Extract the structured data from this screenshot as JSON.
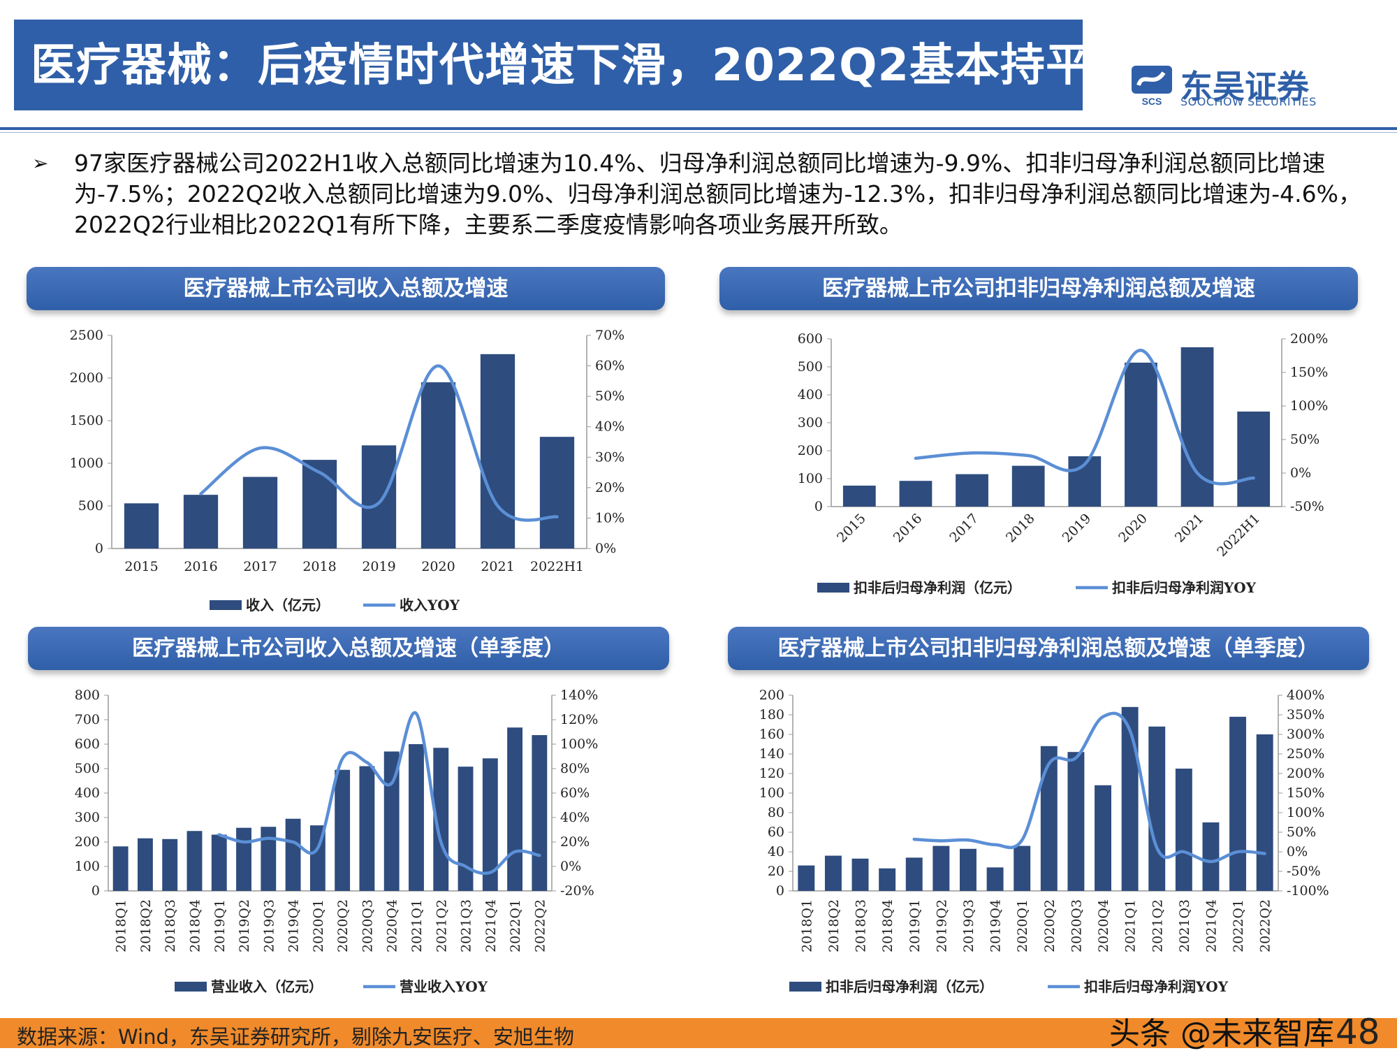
{
  "title": "医疗器械：后疫情时代增速下滑，2022Q2基本持平",
  "logo": {
    "cn": "东吴证券",
    "en": "SOOCHOW SECURITIES",
    "mark": "SCS"
  },
  "summary": {
    "bullet": "➢",
    "text": "97家医疗器械公司2022H1收入总额同比增速为10.4%、归母净利润总额同比增速为-9.9%、扣非归母净利润总额同比增速为-7.5%；2022Q2收入总额同比增速为9.0%、归母净利润总额同比增速为-12.3%，扣非归母净利润总额同比增速为-4.6%，2022Q2行业相比2022Q1有所下降，主要系二季度疫情影响各项业务展开所致。"
  },
  "colors": {
    "bar": "#2e4c7e",
    "line": "#5b8fd6",
    "header": "#2f5fa8",
    "footer": "#f08a2a"
  },
  "chart_data": [
    {
      "header": "医疗器械上市公司收入总额及增速",
      "type": "bar",
      "categories": [
        "2015",
        "2016",
        "2017",
        "2018",
        "2019",
        "2020",
        "2021",
        "2022H1"
      ],
      "series": [
        {
          "name": "收入（亿元）",
          "type": "bar",
          "axis": "left",
          "values": [
            530,
            630,
            840,
            1040,
            1210,
            1950,
            2280,
            1310
          ]
        },
        {
          "name": "收入YOY",
          "type": "line",
          "axis": "right",
          "values": [
            null,
            18,
            33,
            25,
            15,
            60,
            14,
            10.4
          ]
        }
      ],
      "left_axis": {
        "min": 0,
        "max": 2500,
        "ticks": [
          "0",
          "500",
          "1000",
          "1500",
          "2000",
          "2500"
        ]
      },
      "right_axis": {
        "min": 0,
        "max": 70,
        "ticks": [
          "0%",
          "10%",
          "20%",
          "30%",
          "40%",
          "50%",
          "60%",
          "70%"
        ]
      },
      "legend": "bottom"
    },
    {
      "header": "医疗器械上市公司扣非归母净利润总额及增速",
      "type": "bar",
      "categories": [
        "2015",
        "2016",
        "2017",
        "2018",
        "2019",
        "2020",
        "2021",
        "2022H1"
      ],
      "series": [
        {
          "name": "扣非后归母净利润（亿元）",
          "type": "bar",
          "axis": "left",
          "values": [
            75,
            92,
            116,
            146,
            180,
            515,
            570,
            340
          ]
        },
        {
          "name": "扣非后归母净利润YOY",
          "type": "line",
          "axis": "right",
          "values": [
            null,
            22,
            30,
            26,
            13,
            183,
            0,
            -7.5
          ]
        }
      ],
      "left_axis": {
        "min": 0,
        "max": 600,
        "ticks": [
          "0",
          "100",
          "200",
          "300",
          "400",
          "500",
          "600"
        ]
      },
      "right_axis": {
        "min": -50,
        "max": 200,
        "ticks": [
          "-50%",
          "0%",
          "50%",
          "100%",
          "150%",
          "200%"
        ]
      },
      "legend": "bottom"
    },
    {
      "header": "医疗器械上市公司收入总额及增速（单季度）",
      "type": "bar",
      "categories": [
        "2018Q1",
        "2018Q2",
        "2018Q3",
        "2018Q4",
        "2019Q1",
        "2019Q2",
        "2019Q3",
        "2019Q4",
        "2020Q1",
        "2020Q2",
        "2020Q3",
        "2020Q4",
        "2021Q1",
        "2021Q2",
        "2021Q3",
        "2021Q4",
        "2022Q1",
        "2022Q2"
      ],
      "series": [
        {
          "name": "营业收入（亿元）",
          "type": "bar",
          "axis": "left",
          "values": [
            182,
            215,
            212,
            245,
            230,
            258,
            262,
            295,
            268,
            495,
            510,
            570,
            600,
            585,
            508,
            542,
            668,
            637
          ]
        },
        {
          "name": "营业收入YOY",
          "type": "line",
          "axis": "right",
          "values": [
            null,
            null,
            null,
            null,
            26,
            20,
            23,
            20,
            15,
            88,
            85,
            68,
            125,
            20,
            0,
            -5,
            12,
            9.0
          ]
        }
      ],
      "left_axis": {
        "min": 0,
        "max": 800,
        "ticks": [
          "0",
          "100",
          "200",
          "300",
          "400",
          "500",
          "600",
          "700",
          "800"
        ]
      },
      "right_axis": {
        "min": -20,
        "max": 140,
        "ticks": [
          "-20%",
          "0%",
          "20%",
          "40%",
          "60%",
          "80%",
          "100%",
          "120%",
          "140%"
        ]
      },
      "legend": "bottom"
    },
    {
      "header": "医疗器械上市公司扣非归母净利润总额及增速（单季度）",
      "type": "bar",
      "categories": [
        "2018Q1",
        "2018Q2",
        "2018Q3",
        "2018Q4",
        "2019Q1",
        "2019Q2",
        "2019Q3",
        "2019Q4",
        "2020Q1",
        "2020Q2",
        "2020Q3",
        "2020Q4",
        "2021Q1",
        "2021Q2",
        "2021Q3",
        "2021Q4",
        "2022Q1",
        "2022Q2"
      ],
      "series": [
        {
          "name": "扣非后归母净利润（亿元）",
          "type": "bar",
          "axis": "left",
          "values": [
            26,
            36,
            33,
            23,
            34,
            46,
            43,
            24,
            46,
            148,
            142,
            108,
            188,
            168,
            125,
            70,
            178,
            160
          ]
        },
        {
          "name": "扣非后归母净利润YOY",
          "type": "line",
          "axis": "right",
          "values": [
            null,
            null,
            null,
            null,
            32,
            28,
            30,
            18,
            30,
            225,
            240,
            345,
            310,
            10,
            0,
            -25,
            0,
            -4.6
          ]
        }
      ],
      "left_axis": {
        "min": 0,
        "max": 200,
        "ticks": [
          "0",
          "20",
          "40",
          "60",
          "80",
          "100",
          "120",
          "140",
          "160",
          "180",
          "200"
        ]
      },
      "right_axis": {
        "min": -100,
        "max": 400,
        "ticks": [
          "-100%",
          "-50%",
          "0%",
          "50%",
          "100%",
          "150%",
          "200%",
          "250%",
          "300%",
          "350%",
          "400%"
        ]
      },
      "legend": "bottom"
    }
  ],
  "footer": {
    "source": "数据来源：Wind，东吴证券研究所，剔除九安医疗、安旭生物",
    "watermark": "头条 @未来智库",
    "page": "48"
  }
}
